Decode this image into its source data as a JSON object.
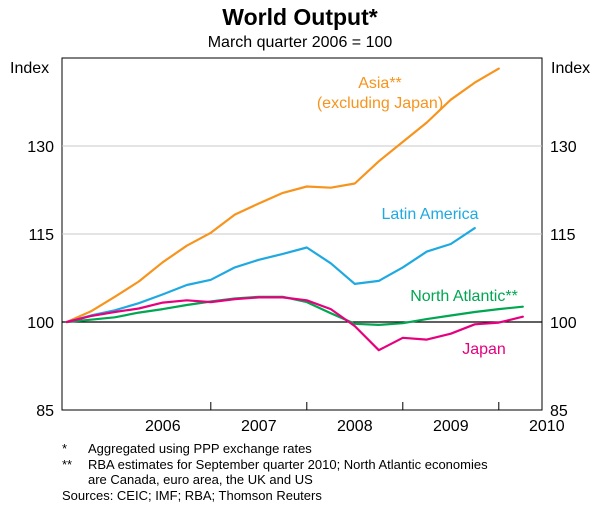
{
  "chart_data": {
    "type": "line",
    "title": "World Output*",
    "subtitle": "March quarter 2006 = 100",
    "ylabel_left": "Index",
    "ylabel_right": "Index",
    "ylim": [
      85,
      145
    ],
    "yticks": [
      85,
      100,
      115,
      130
    ],
    "xlim": [
      2005.45,
      2010.45
    ],
    "xtick_labels": [
      "2006",
      "2007",
      "2008",
      "2009",
      "2010"
    ],
    "x": [
      2005.5,
      2005.75,
      2006.0,
      2006.25,
      2006.5,
      2006.75,
      2007.0,
      2007.25,
      2007.5,
      2007.75,
      2008.0,
      2008.25,
      2008.5,
      2008.75,
      2009.0,
      2009.25,
      2009.5,
      2009.75,
      2010.0,
      2010.25
    ],
    "series": [
      {
        "name": "Asia**",
        "label_lines": [
          "Asia**",
          "(excluding Japan)"
        ],
        "color": "#f7941d",
        "values": [
          100,
          101.8,
          104.3,
          106.9,
          110.2,
          113,
          115.2,
          118.3,
          120.2,
          122,
          123.1,
          122.9,
          123.6,
          127.4,
          130.7,
          134,
          137.9,
          140.8,
          143.2,
          null
        ]
      },
      {
        "name": "Latin America",
        "label_lines": [
          "Latin America"
        ],
        "color": "#1fa9e1",
        "values": [
          100,
          101.1,
          102,
          103.2,
          104.7,
          106.3,
          107.2,
          109.3,
          110.6,
          111.6,
          112.7,
          110,
          106.5,
          107,
          109.3,
          112,
          113.3,
          116,
          null,
          null
        ]
      },
      {
        "name": "North Atlantic**",
        "label_lines": [
          "North Atlantic**"
        ],
        "color": "#00a651",
        "values": [
          100,
          100.4,
          100.8,
          101.6,
          102.2,
          102.9,
          103.5,
          104,
          104.3,
          104.3,
          103.4,
          101.5,
          99.7,
          99.5,
          99.8,
          100.5,
          101.1,
          101.7,
          102.2,
          102.6
        ]
      },
      {
        "name": "Japan",
        "label_lines": [
          "Japan"
        ],
        "color": "#e6007e",
        "values": [
          100,
          101,
          101.7,
          102.3,
          103.3,
          103.7,
          103.4,
          103.9,
          104.2,
          104.2,
          103.7,
          102.2,
          99.3,
          95.2,
          97.3,
          97,
          98,
          99.6,
          99.9,
          100.9
        ]
      }
    ]
  },
  "notes": [
    {
      "mark": "*",
      "lines": [
        "Aggregated using PPP exchange rates"
      ]
    },
    {
      "mark": "**",
      "lines": [
        "RBA estimates for September quarter 2010; North Atlantic economies",
        "are Canada, euro area, the UK and US"
      ]
    }
  ],
  "sources": "Sources: CEIC; IMF; RBA; Thomson Reuters"
}
